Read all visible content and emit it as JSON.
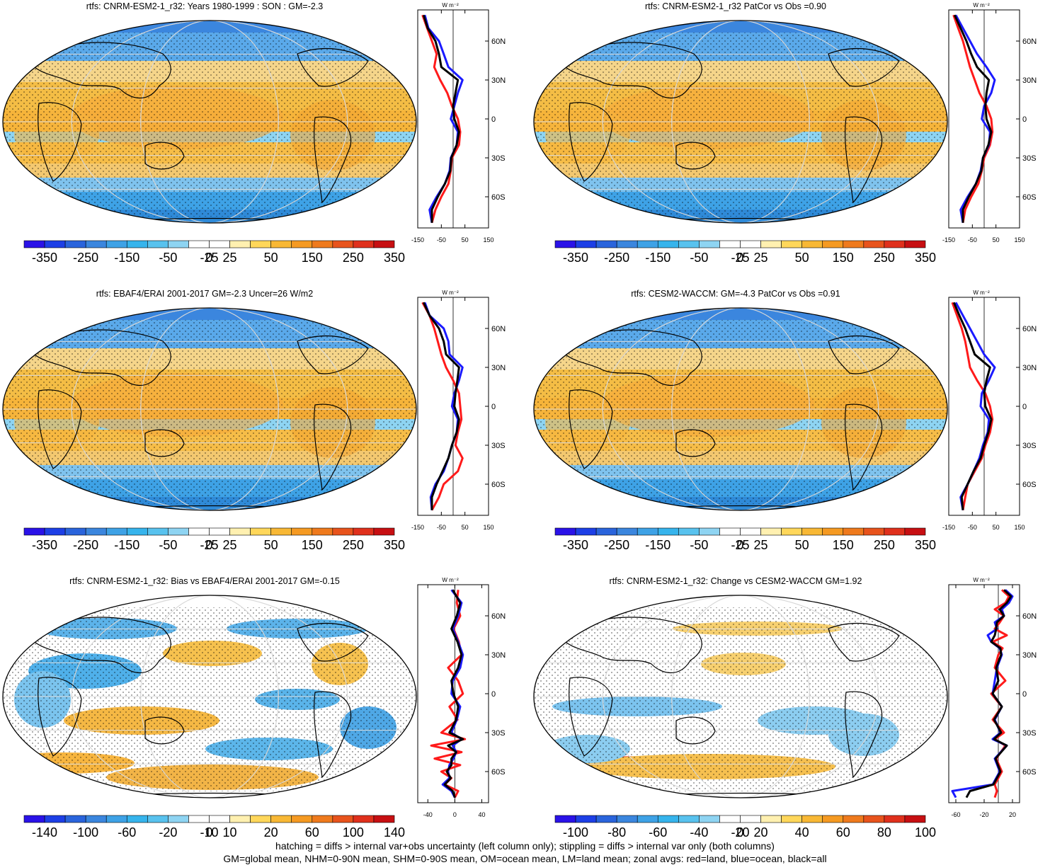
{
  "colors": {
    "palette": [
      "#2a12e8",
      "#1d3fe6",
      "#2a64dc",
      "#3b86de",
      "#3ea2e6",
      "#36b4ec",
      "#58c2ee",
      "#8ed4f2",
      "#ffffff",
      "#ffffff",
      "#fff0b0",
      "#ffd75a",
      "#f8b835",
      "#f59a22",
      "#ef7a1d",
      "#e8531c",
      "#e0301c",
      "#c70f12"
    ],
    "land_line": "#ff1a1a",
    "ocean_line": "#1a1aff",
    "all_line": "#000000"
  },
  "panels": [
    {
      "id": "top-left",
      "title": "rtfs: CNRM-ESM2-1_r32: Years 1980-1999 : SON : GM=-2.3",
      "map_style": "mean",
      "colorbar_labels": [
        "-350",
        "-250",
        "-150",
        "-50",
        "-25",
        "0",
        "25",
        "50",
        "150",
        "250",
        "350"
      ],
      "zonal_unit": "W m⁻²",
      "zonal_xticks": [
        "-150",
        "-50",
        "50",
        "150"
      ],
      "zonal_xrange": [
        -150,
        150
      ],
      "lat_labels": [
        "60N",
        "30N",
        "0",
        "30S",
        "60S"
      ],
      "zonal_lines": {
        "lat": [
          80,
          70,
          60,
          50,
          40,
          30,
          20,
          10,
          0,
          -10,
          -20,
          -30,
          -40,
          -50,
          -60,
          -70,
          -80
        ],
        "land": [
          -130,
          -110,
          -90,
          -70,
          -80,
          -55,
          -25,
          -5,
          20,
          30,
          25,
          -5,
          -10,
          -20,
          -50,
          -75,
          -90
        ],
        "ocean": [
          -120,
          -105,
          -60,
          -40,
          -20,
          40,
          20,
          5,
          -10,
          20,
          15,
          -10,
          -15,
          -35,
          -70,
          -100,
          -90
        ],
        "all": [
          -125,
          -108,
          -75,
          -60,
          -50,
          20,
          10,
          0,
          5,
          25,
          15,
          -8,
          -12,
          -35,
          -65,
          -90,
          -90
        ]
      }
    },
    {
      "id": "top-right",
      "title": "rtfs: CNRM-ESM2-1_r32 PatCor vs Obs =0.90",
      "map_style": "mean",
      "colorbar_labels": [
        "-350",
        "-250",
        "-150",
        "-50",
        "-25",
        "0",
        "25",
        "50",
        "150",
        "250",
        "350"
      ],
      "zonal_unit": "W m⁻²",
      "zonal_xticks": [
        "-150",
        "-50",
        "50",
        "150"
      ],
      "zonal_xrange": [
        -150,
        150
      ],
      "lat_labels": [
        "60N",
        "30N",
        "0",
        "30S",
        "60S"
      ],
      "zonal_lines": {
        "lat": [
          80,
          70,
          60,
          50,
          40,
          30,
          20,
          10,
          0,
          -10,
          -20,
          -30,
          -40,
          -50,
          -60,
          -70,
          -80
        ],
        "land": [
          -130,
          -110,
          -90,
          -75,
          -60,
          -40,
          -20,
          10,
          30,
          35,
          25,
          0,
          -10,
          -25,
          -55,
          -80,
          -90
        ],
        "ocean": [
          -120,
          -90,
          -60,
          -30,
          10,
          45,
          30,
          0,
          -10,
          25,
          20,
          -5,
          -15,
          -35,
          -70,
          -100,
          -90
        ],
        "all": [
          -125,
          -100,
          -75,
          -55,
          -30,
          20,
          10,
          5,
          10,
          30,
          18,
          -5,
          -12,
          -35,
          -65,
          -90,
          -90
        ]
      }
    },
    {
      "id": "middle-left",
      "title": "rtfs: EBAF4/ERAI 2001-2017 GM=-2.3 Uncer=26 W/m2",
      "map_style": "mean",
      "colorbar_labels": [
        "-350",
        "-250",
        "-150",
        "-50",
        "-25",
        "0",
        "25",
        "50",
        "150",
        "250",
        "350"
      ],
      "zonal_unit": "W m⁻²",
      "zonal_xticks": [
        "-150",
        "-50",
        "50",
        "150"
      ],
      "zonal_xrange": [
        -150,
        150
      ],
      "lat_labels": [
        "60N",
        "30N",
        "0",
        "30S",
        "60S"
      ],
      "zonal_lines": {
        "lat": [
          80,
          70,
          60,
          50,
          40,
          30,
          20,
          10,
          0,
          -10,
          -20,
          -30,
          -40,
          -50,
          -60,
          -70,
          -80
        ],
        "land": [
          -130,
          -100,
          -80,
          -65,
          -50,
          -30,
          0,
          25,
          30,
          35,
          20,
          10,
          40,
          20,
          -40,
          -60,
          -90
        ],
        "ocean": [
          -120,
          -100,
          -40,
          -20,
          -15,
          40,
          25,
          5,
          -5,
          20,
          15,
          -5,
          -20,
          -40,
          -75,
          -95,
          -90
        ],
        "all": [
          -125,
          -100,
          -60,
          -40,
          -30,
          25,
          18,
          10,
          5,
          25,
          15,
          -5,
          -20,
          -45,
          -70,
          -90,
          -90
        ]
      }
    },
    {
      "id": "middle-right",
      "title": "rtfs: CESM2-WACCM: GM=-4.3 PatCor vs Obs =0.91",
      "map_style": "mean",
      "colorbar_labels": [
        "-350",
        "-250",
        "-150",
        "-50",
        "-25",
        "0",
        "25",
        "50",
        "150",
        "250",
        "350"
      ],
      "zonal_unit": "W m⁻²",
      "zonal_xticks": [
        "-150",
        "-50",
        "50",
        "150"
      ],
      "zonal_xrange": [
        -150,
        150
      ],
      "lat_labels": [
        "60N",
        "30N",
        "0",
        "30S",
        "60S"
      ],
      "zonal_lines": {
        "lat": [
          80,
          70,
          60,
          50,
          40,
          30,
          20,
          10,
          0,
          -10,
          -20,
          -30,
          -40,
          -50,
          -60,
          -70,
          -80
        ],
        "land": [
          -135,
          -115,
          -95,
          -80,
          -70,
          -60,
          -30,
          5,
          25,
          35,
          25,
          5,
          -10,
          -40,
          -70,
          -80,
          -90
        ],
        "ocean": [
          -120,
          -90,
          -60,
          -30,
          0,
          45,
          20,
          -10,
          -15,
          20,
          15,
          -5,
          -20,
          -45,
          -70,
          -100,
          -90
        ],
        "all": [
          -128,
          -105,
          -80,
          -60,
          -40,
          25,
          10,
          0,
          5,
          30,
          18,
          0,
          -15,
          -45,
          -70,
          -95,
          -90
        ]
      }
    },
    {
      "id": "bottom-left",
      "title": "rtfs: CNRM-ESM2-1_r32: Bias vs EBAF4/ERAI 2001-2017  GM=-0.15",
      "map_style": "diff",
      "colorbar_labels": [
        "-140",
        "-100",
        "-60",
        "-20",
        "-10",
        "0",
        "10",
        "20",
        "60",
        "100",
        "140"
      ],
      "zonal_unit": "W m⁻²",
      "zonal_xticks": [
        "-40",
        "0",
        "40"
      ],
      "zonal_xrange": [
        -55,
        50
      ],
      "lat_labels": [
        "60N",
        "30N",
        "0",
        "30S",
        "60S"
      ],
      "zonal_lines": {
        "lat": [
          80,
          70,
          60,
          50,
          40,
          30,
          20,
          10,
          0,
          -10,
          -20,
          -30,
          -35,
          -40,
          -45,
          -50,
          -55,
          -60,
          -65,
          -70,
          -75,
          -80
        ],
        "land": [
          5,
          3,
          8,
          -2,
          6,
          10,
          -10,
          5,
          12,
          -8,
          4,
          -20,
          15,
          -35,
          10,
          -30,
          8,
          -20,
          -5,
          -15,
          5,
          0
        ],
        "ocean": [
          -5,
          10,
          5,
          -3,
          5,
          12,
          8,
          -3,
          -5,
          8,
          3,
          -5,
          10,
          -3,
          2,
          -2,
          -8,
          -10,
          -8,
          -18,
          -5,
          0
        ],
        "all": [
          -3,
          8,
          3,
          -5,
          4,
          10,
          5,
          -5,
          -2,
          5,
          2,
          -8,
          12,
          -10,
          2,
          -5,
          -5,
          -12,
          -6,
          -15,
          -3,
          0
        ]
      }
    },
    {
      "id": "bottom-right",
      "title": "rtfs: CNRM-ESM2-1_r32: Change vs CESM2-WACCM GM=1.92",
      "map_style": "diff",
      "colorbar_labels": [
        "-100",
        "-80",
        "-60",
        "-40",
        "-20",
        "0",
        "20",
        "40",
        "60",
        "80",
        "100"
      ],
      "zonal_unit": "W m⁻²",
      "zonal_xticks": [
        "-60",
        "-20",
        "20"
      ],
      "zonal_xrange": [
        -70,
        30
      ],
      "lat_labels": [
        "60N",
        "30N",
        "0",
        "30S",
        "60S"
      ],
      "zonal_lines": {
        "lat": [
          80,
          75,
          70,
          65,
          60,
          55,
          50,
          45,
          40,
          35,
          30,
          20,
          10,
          0,
          -10,
          -20,
          -30,
          -35,
          -40,
          -50,
          -60,
          -70,
          -75,
          -80
        ],
        "land": [
          5,
          15,
          10,
          -5,
          8,
          2,
          -5,
          12,
          -8,
          6,
          0,
          -5,
          10,
          -10,
          5,
          -8,
          8,
          -5,
          10,
          -3,
          5,
          -5,
          -2,
          -5
        ],
        "ocean": [
          10,
          20,
          15,
          5,
          8,
          -5,
          -2,
          -15,
          -10,
          2,
          5,
          -2,
          -5,
          -8,
          5,
          -5,
          3,
          -8,
          12,
          -5,
          2,
          -8,
          -65,
          -60
        ],
        "all": [
          8,
          18,
          12,
          2,
          8,
          -2,
          -3,
          -5,
          -10,
          3,
          4,
          -3,
          0,
          -8,
          5,
          -6,
          4,
          -6,
          12,
          -4,
          3,
          -7,
          -40,
          -45
        ]
      }
    }
  ],
  "footer": {
    "line1": "hatching = diffs > internal var+obs uncertainty (left column only); stippling = diffs > internal var only (both columns)",
    "line2": "GM=global mean, NHM=0-90N mean, SHM=0-90S mean, OM=ocean mean, LM=land mean; zonal avgs: red=land, blue=ocean, black=all"
  }
}
